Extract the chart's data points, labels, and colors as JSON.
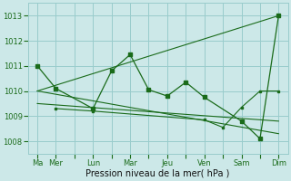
{
  "background_color": "#cce8e8",
  "grid_color": "#99cccc",
  "line_color": "#1a6b1a",
  "xlabel": "Pression niveau de la mer( hPa )",
  "xlabel_fontsize": 7,
  "ylim": [
    1007.5,
    1013.5
  ],
  "yticks": [
    1008,
    1009,
    1010,
    1011,
    1012,
    1013
  ],
  "xtick_labels": [
    "Ma",
    "Mer",
    "",
    "Lun",
    "",
    "Mar",
    "",
    "Jeu",
    "",
    "Ven",
    "",
    "Sam",
    "",
    "Dim"
  ],
  "xtick_positions": [
    0,
    1,
    2,
    3,
    4,
    5,
    6,
    7,
    8,
    9,
    10,
    11,
    12,
    13
  ],
  "xlim": [
    -0.5,
    13.5
  ],
  "series_zigzag": {
    "x": [
      0,
      1,
      3,
      4,
      5,
      6,
      7,
      8,
      9,
      11,
      12,
      13
    ],
    "y": [
      1011.0,
      1010.1,
      1009.3,
      1010.8,
      1011.45,
      1010.05,
      1009.8,
      1010.35,
      1009.75,
      1008.8,
      1008.1,
      1013.0
    ]
  },
  "series_trend_up": {
    "x": [
      0,
      13
    ],
    "y": [
      1010.0,
      1013.0
    ]
  },
  "series_trend_down1": {
    "x": [
      0,
      13
    ],
    "y": [
      1009.5,
      1008.8
    ]
  },
  "series_trend_down2": {
    "x": [
      0,
      13
    ],
    "y": [
      1010.0,
      1008.3
    ]
  },
  "series_extra": {
    "x": [
      1,
      3,
      9,
      10,
      11,
      12,
      13
    ],
    "y": [
      1009.3,
      1009.2,
      1008.85,
      1008.55,
      1009.35,
      1010.0,
      1010.0
    ]
  }
}
